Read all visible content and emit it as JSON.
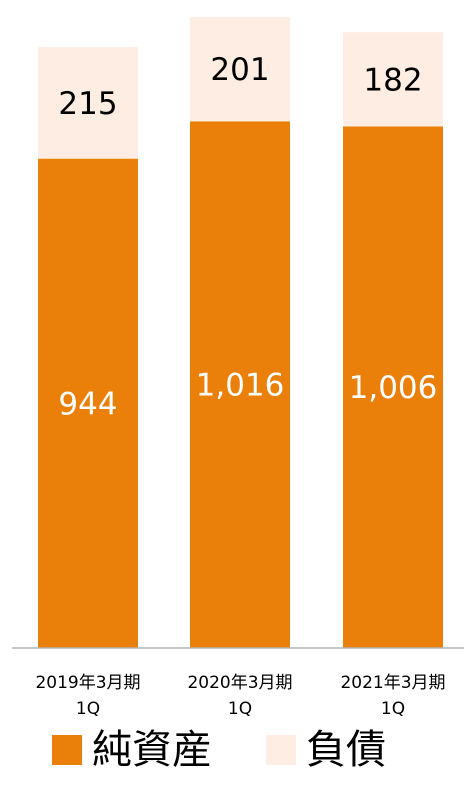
{
  "chart_data": {
    "type": "bar",
    "stacked": true,
    "categories": [
      "2019年3月期\n1Q",
      "2020年3月期\n1Q",
      "2021年3月期\n1Q"
    ],
    "series": [
      {
        "name": "純資産",
        "values": [
          944,
          1016,
          1006
        ],
        "labels": [
          "944",
          "1,016",
          "1,006"
        ],
        "color": "#EA7F0A",
        "label_color": "#ffffff"
      },
      {
        "name": "負債",
        "values": [
          215,
          201,
          182
        ],
        "labels": [
          "215",
          "201",
          "182"
        ],
        "color": "#FDEDE3",
        "label_color": "#000000"
      }
    ],
    "ylim": [
      0,
      1250
    ],
    "grid": false,
    "legend": "bottom",
    "baseline_color": "#B3B3B3"
  },
  "legend": {
    "items": [
      {
        "label": "純資産",
        "color": "#EA7F0A"
      },
      {
        "label": "負債",
        "color": "#FDEDE3"
      }
    ]
  }
}
